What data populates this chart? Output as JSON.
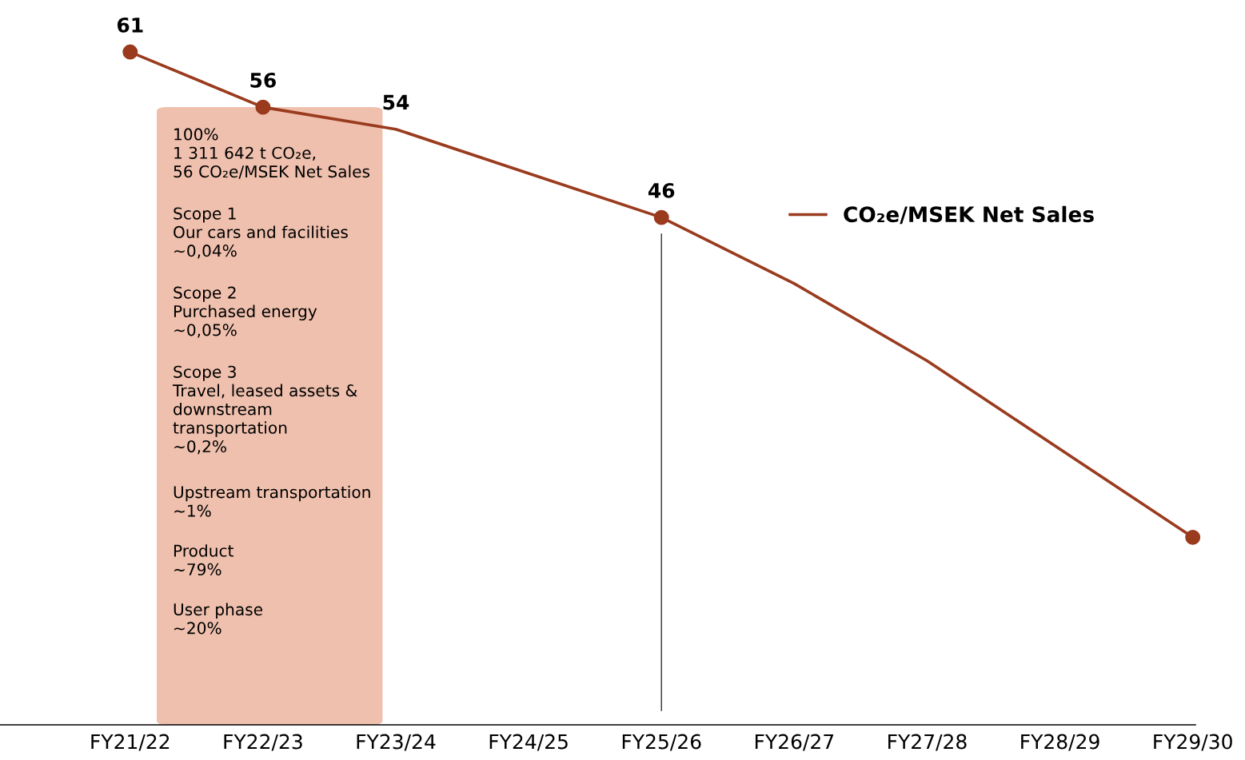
{
  "chart_data": {
    "type": "line",
    "categories": [
      "FY21/22",
      "FY22/23",
      "FY23/24",
      "FY24/25",
      "FY25/26",
      "FY26/27",
      "FY27/28",
      "FY28/29",
      "FY29/30"
    ],
    "series": [
      {
        "name": "CO₂e/MSEK Net Sales",
        "color": "#9a3b1e",
        "values": [
          61,
          56,
          54,
          50,
          46,
          40,
          33,
          25,
          17
        ],
        "value_labels": [
          "61",
          "56",
          "54",
          null,
          "46",
          null,
          null,
          null,
          null
        ]
      },
      {
        "type": "scatter",
        "color": "#9a3b1e",
        "marker": "circle",
        "values": [
          61,
          56,
          null,
          null,
          46,
          null,
          null,
          null,
          17
        ]
      }
    ],
    "tick_labels": "x",
    "ref_lines": [
      {
        "axis": "x",
        "value": "FY25/26",
        "color": "#333333"
      }
    ],
    "annotations": [
      "100%\n1 311 642 t CO₂e,\n56 CO₂e/MSEK Net Sales",
      "Scope 1\nOur cars and facilities\n~0,04%",
      "Scope 2\nPurchased energy\n~0,05%",
      "Scope 3\nTravel, leased assets &\ndownstream\ntransportation\n~0,2%",
      "Upstream transportation\n~1%",
      "Product\n~79%",
      "User phase\n~20%"
    ],
    "legend": "right",
    "grid": false
  }
}
